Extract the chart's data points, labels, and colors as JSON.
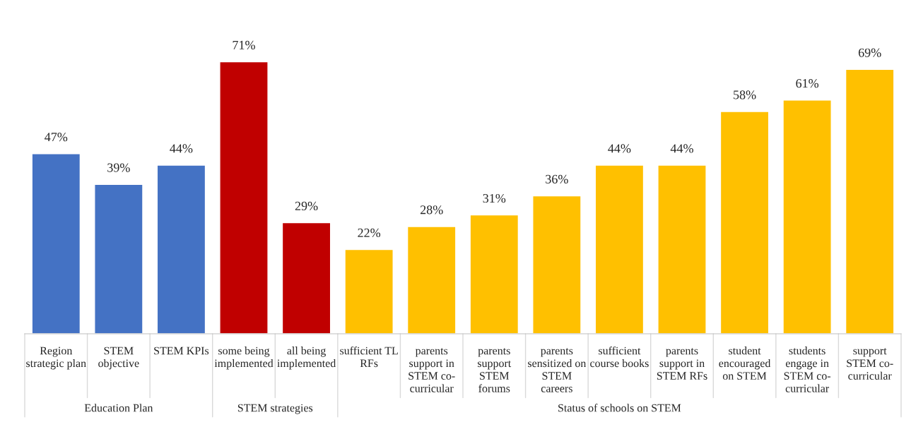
{
  "chart_data": {
    "type": "bar",
    "categories": [
      "Region\nstrategic plan",
      "STEM\nobjective",
      "STEM KPIs",
      "some being\nimplemented",
      "all being\nimplemented",
      "sufficient TL\nRFs",
      "parents\nsupport in\nSTEM co-\ncurricular",
      "parents\nsupport\nSTEM\nforums",
      "parents\nsensitized on\nSTEM\ncareers",
      "sufficient\ncourse books",
      "parents\nsupport in\nSTEM RFs",
      "student\nencouraged\non STEM",
      "students\nengage in\nSTEM co-\ncurricular",
      "support\nSTEM co-\ncurricular"
    ],
    "values": [
      47,
      39,
      44,
      71,
      29,
      22,
      28,
      31,
      36,
      44,
      44,
      58,
      61,
      69
    ],
    "value_labels": [
      "47%",
      "39%",
      "44%",
      "71%",
      "29%",
      "22%",
      "28%",
      "31%",
      "36%",
      "44%",
      "44%",
      "58%",
      "61%",
      "69%"
    ],
    "colors": [
      "#4472c4",
      "#4472c4",
      "#4472c4",
      "#c00000",
      "#c00000",
      "#ffc000",
      "#ffc000",
      "#ffc000",
      "#ffc000",
      "#ffc000",
      "#ffc000",
      "#ffc000",
      "#ffc000",
      "#ffc000"
    ],
    "annotations": [
      "Education Plan",
      "STEM strategies",
      "Status of schools on STEM"
    ]
  }
}
